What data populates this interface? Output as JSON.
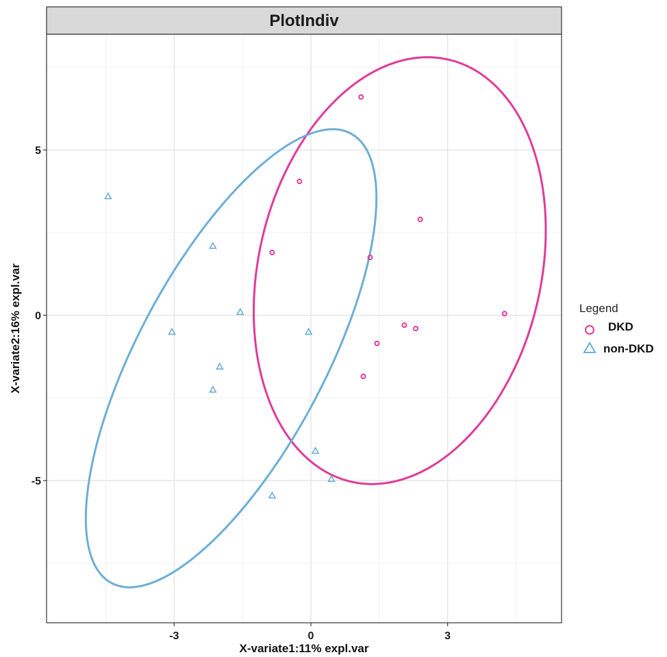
{
  "chart_data": {
    "type": "scatter",
    "title": "PlotIndiv",
    "xlabel": "X-variate1:11% expl.var",
    "ylabel": "X-variate2:16% expl.var",
    "xlim": [
      -5.8,
      5.5
    ],
    "ylim": [
      -9.3,
      8.5
    ],
    "x_ticks": [
      -3,
      0,
      3
    ],
    "x_tick_labels": [
      "-3",
      "0",
      "3"
    ],
    "y_ticks": [
      -5,
      0,
      5
    ],
    "y_tick_labels": [
      "-5",
      "0",
      "5"
    ],
    "grid": true,
    "legend": {
      "title": "Legend",
      "placement": "right",
      "entries": [
        "DKD",
        "non-DKD"
      ]
    },
    "series": [
      {
        "name": "DKD",
        "marker": "circle",
        "color": "#e0399a",
        "x": [
          1.1,
          -0.25,
          2.4,
          -0.85,
          1.3,
          2.05,
          2.3,
          1.45,
          1.15,
          4.25
        ],
        "y": [
          6.6,
          4.05,
          2.9,
          1.9,
          1.75,
          -0.3,
          -0.4,
          -0.85,
          -1.85,
          0.05
        ]
      },
      {
        "name": "non-DKD",
        "marker": "triangle",
        "color": "#6baed6",
        "x": [
          -4.45,
          -2.15,
          -1.55,
          -3.05,
          -0.05,
          -2.0,
          -2.15,
          0.1,
          0.45,
          -0.85
        ],
        "y": [
          3.6,
          2.1,
          0.1,
          -0.5,
          -0.5,
          -1.55,
          -2.25,
          -4.1,
          -4.95,
          -5.45
        ]
      }
    ],
    "ellipses": [
      {
        "name": "DKD",
        "color": "#e0399a",
        "cx": 1.95,
        "cy": 1.35,
        "rx": 3.1,
        "ry": 6.55,
        "angle_deg": 13
      },
      {
        "name": "non-DKD",
        "color": "#6baed6",
        "cx": -1.75,
        "cy": -1.3,
        "rx": 2.05,
        "ry": 7.7,
        "angle_deg": 28
      }
    ]
  }
}
